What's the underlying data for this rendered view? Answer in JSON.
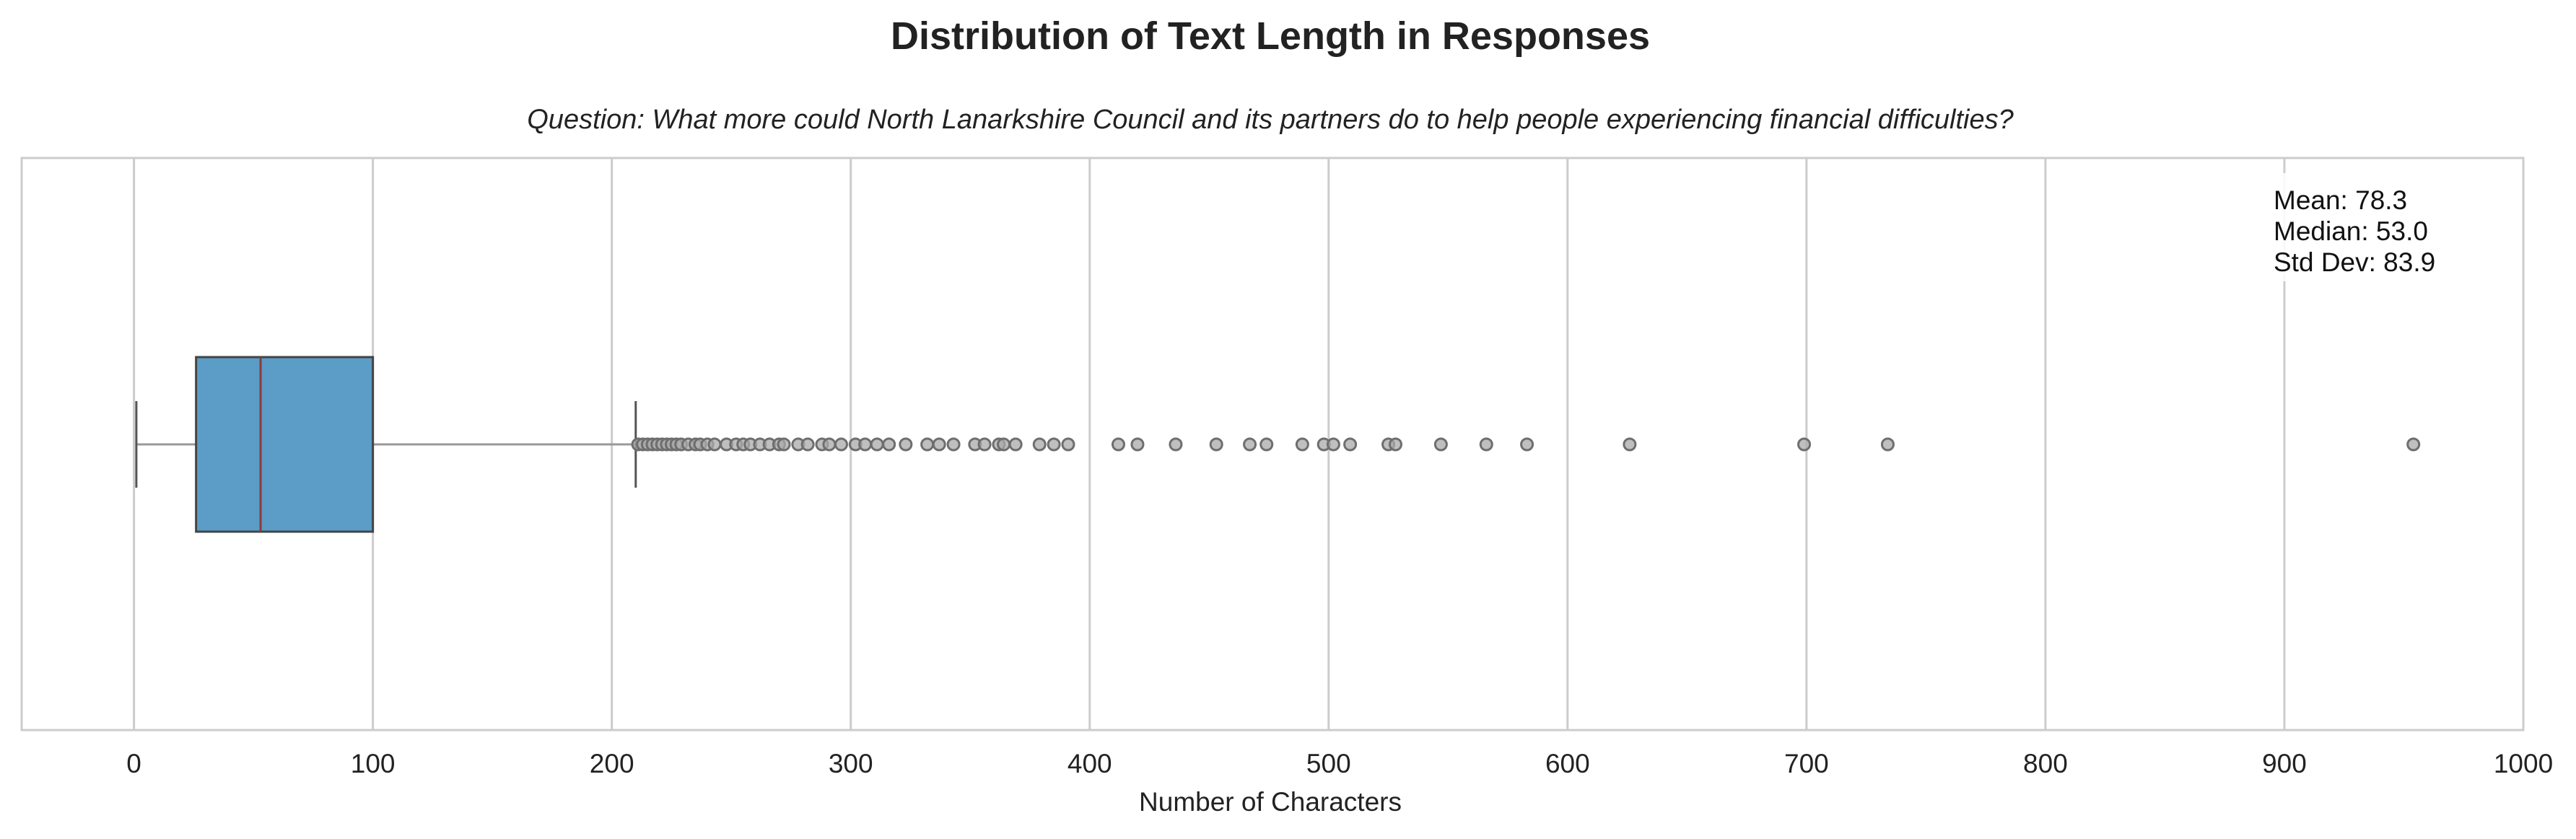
{
  "chart_data": {
    "type": "boxplot",
    "title": "Distribution of Text Length in Responses",
    "subtitle": "Question: What more could North Lanarkshire Council and its partners do to help people experiencing financial difficulties?",
    "xlabel": "Number of Characters",
    "ylabel": "",
    "xlim": [
      -47,
      1000
    ],
    "x_ticks": [
      0,
      100,
      200,
      300,
      400,
      500,
      600,
      700,
      800,
      900,
      1000
    ],
    "x_tick_labels": [
      "0",
      "100",
      "200",
      "300",
      "400",
      "500",
      "600",
      "700",
      "800",
      "900",
      "1000"
    ],
    "grid": "vertical",
    "orientation": "horizontal",
    "box": {
      "whisker_low": 1,
      "q1": 26,
      "median": 53,
      "q3": 100,
      "whisker_high": 210
    },
    "outliers": [
      211,
      213,
      215,
      217,
      219,
      221,
      223,
      225,
      227,
      229,
      232,
      235,
      237,
      240,
      243,
      248,
      252,
      255,
      258,
      262,
      266,
      270,
      272,
      278,
      282,
      288,
      291,
      296,
      302,
      306,
      311,
      316,
      323,
      332,
      337,
      343,
      352,
      356,
      362,
      364,
      369,
      379,
      385,
      391,
      412,
      420,
      436,
      453,
      467,
      474,
      489,
      498,
      502,
      509,
      525,
      528,
      547,
      566,
      583,
      626,
      699,
      734,
      954
    ],
    "stats": {
      "lines": [
        "Mean: 78.3",
        "Median: 53.0",
        "Std Dev: 83.9"
      ]
    },
    "colors": {
      "box_fill": "#5b9dc6",
      "box_edge": "#444444",
      "median_line": "#8b3a3a",
      "whisker": "#999999",
      "outlier_fill": "#aaaaaa",
      "outlier_edge": "#6e6e6e",
      "grid": "#cccccc",
      "frame": "#cccccc"
    }
  }
}
